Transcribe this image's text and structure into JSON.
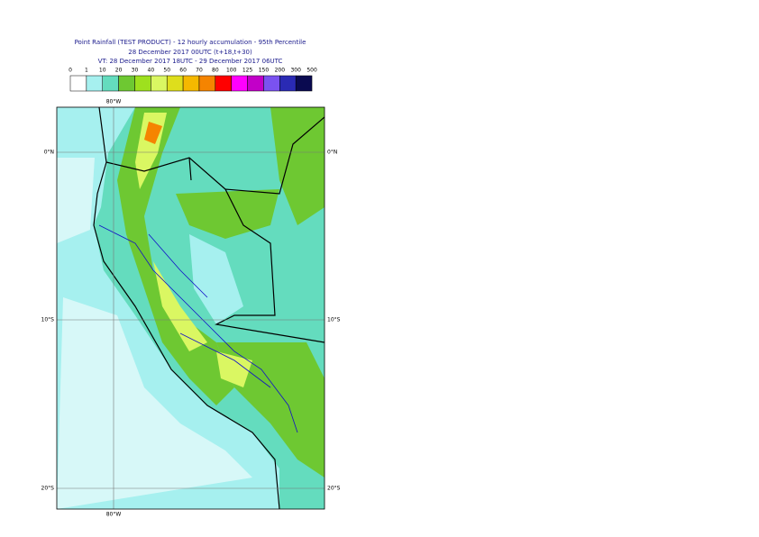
{
  "header": {
    "title": "Point Rainfall (TEST PRODUCT) - 12 hourly accumulation - 95th Percentile",
    "base_time": "28 December 2017 00UTC (t+18,t+30)",
    "valid_time": "VT: 28 December 2017 18UTC - 29 December 2017 06UTC"
  },
  "legend": {
    "thresholds": [
      0,
      1,
      10,
      20,
      30,
      40,
      50,
      60,
      70,
      80,
      100,
      125,
      150,
      200,
      300,
      500
    ],
    "colors": [
      "#ffffff",
      "#a6f0ef",
      "#64dcbe",
      "#6ec832",
      "#9ee01e",
      "#daf762",
      "#dede1c",
      "#f5b800",
      "#f58400",
      "#ff0000",
      "#ff00ff",
      "#c200c8",
      "#7a52f0",
      "#2a2ab4",
      "#0a0a50"
    ]
  },
  "map": {
    "lon_label": "80°W",
    "lat_labels": [
      "0°N",
      "10°S",
      "20°S"
    ]
  }
}
